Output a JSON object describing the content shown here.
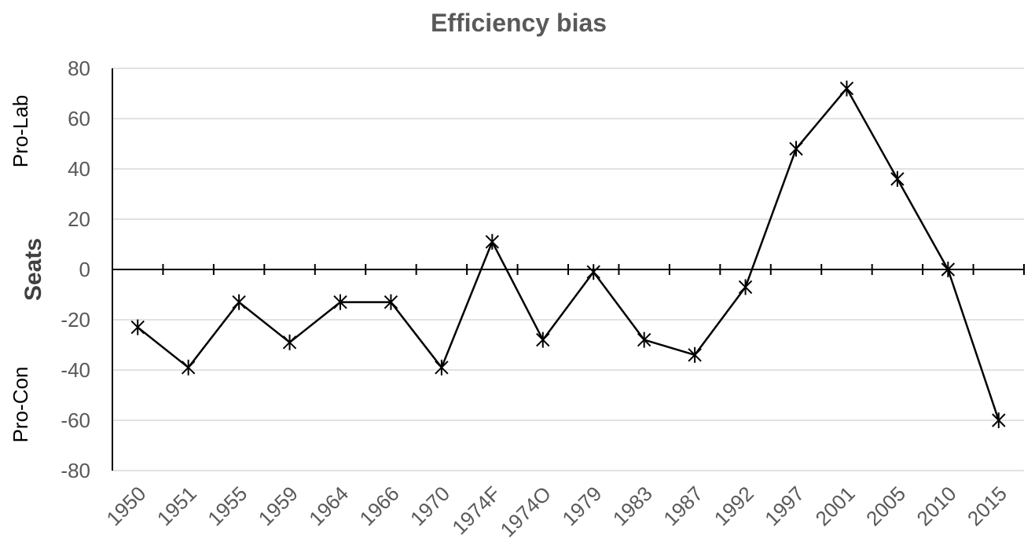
{
  "chart_data": {
    "type": "line",
    "title": "Efficiency bias",
    "ylabel": "Seats",
    "xlabel": "",
    "categories": [
      "1950",
      "1951",
      "1955",
      "1959",
      "1964",
      "1966",
      "1970",
      "1974F",
      "1974O",
      "1979",
      "1983",
      "1987",
      "1992",
      "1997",
      "2001",
      "2005",
      "2010",
      "2015"
    ],
    "series": [
      {
        "values": [
          -23,
          -39,
          -13,
          -29,
          -13,
          -13,
          -39,
          11,
          -28,
          -1,
          -28,
          -34,
          -7,
          48,
          72,
          36,
          0,
          -60
        ]
      }
    ],
    "ylim": [
      -80,
      80
    ],
    "yticks": [
      80,
      60,
      40,
      20,
      0,
      -20,
      -40,
      -60,
      -80
    ],
    "side_labels": {
      "positive": "Pro-Lab",
      "negative": "Pro-Con"
    },
    "grid": true,
    "legend": "none",
    "colors": {
      "line": "#000000",
      "grid": "#d9d9d9",
      "axis": "#000000",
      "text": "#595959"
    }
  }
}
